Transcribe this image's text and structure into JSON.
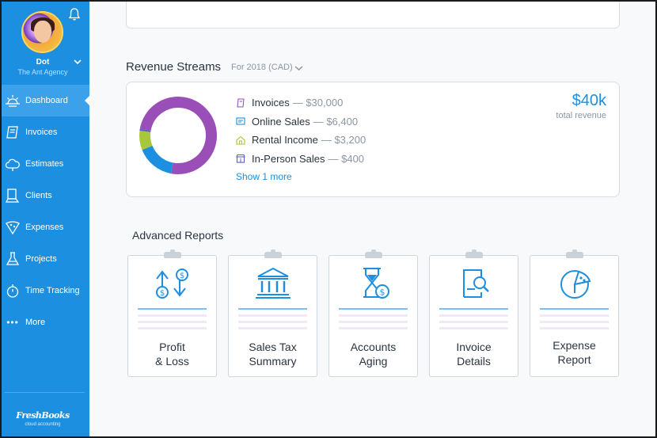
{
  "sidebar": {
    "user": {
      "name": "Dot",
      "org": "The Ant Agency"
    },
    "items": [
      {
        "label": "Dashboard",
        "icon": "sunrise-icon",
        "active": true
      },
      {
        "label": "Invoices",
        "icon": "invoice-icon"
      },
      {
        "label": "Estimates",
        "icon": "cloud-icon"
      },
      {
        "label": "Clients",
        "icon": "clients-icon"
      },
      {
        "label": "Expenses",
        "icon": "pizza-icon"
      },
      {
        "label": "Projects",
        "icon": "flask-icon"
      },
      {
        "label": "Time Tracking",
        "icon": "stopwatch-icon"
      },
      {
        "label": "More",
        "icon": "more-dots-icon"
      }
    ],
    "brand": {
      "name": "FreshBooks",
      "tagline": "cloud accounting"
    }
  },
  "revenue": {
    "title": "Revenue Streams",
    "period": "For 2018 (CAD)",
    "streams": [
      {
        "label": "Invoices",
        "amount": "— $30,000",
        "value": 30000,
        "color": "#9a4fb8"
      },
      {
        "label": "Online Sales",
        "amount": "— $6,400",
        "value": 6400,
        "color": "#1d8fe1"
      },
      {
        "label": "Rental Income",
        "amount": "— $3,200",
        "value": 3200,
        "color": "#a8c73a"
      },
      {
        "label": "In-Person Sales",
        "amount": "— $400",
        "value": 400,
        "color": "#5b5fc7"
      }
    ],
    "show_more": "Show 1 more",
    "total_value": "$40k",
    "total_label": "total revenue"
  },
  "reports": {
    "title": "Advanced Reports",
    "items": [
      {
        "label": "Profit\n& Loss",
        "icon": "profit-loss-icon"
      },
      {
        "label": "Sales Tax\nSummary",
        "icon": "bank-icon"
      },
      {
        "label": "Accounts\nAging",
        "icon": "hourglass-icon"
      },
      {
        "label": "Invoice\nDetails",
        "icon": "invoice-search-icon"
      },
      {
        "label": "Expense\nReport",
        "icon": "pizza-icon"
      }
    ]
  },
  "colors": {
    "sidebar": "#1d8fe1",
    "accent": "#1d8fe1"
  }
}
